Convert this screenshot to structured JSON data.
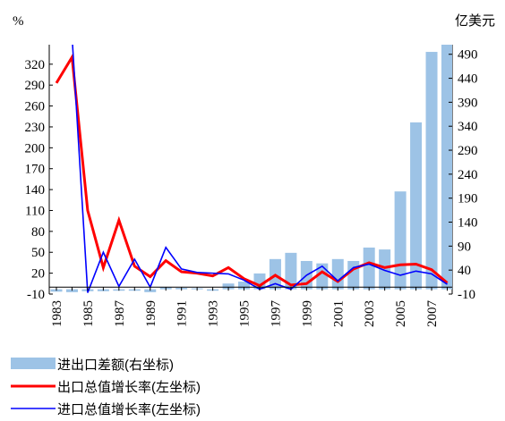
{
  "chart_data": {
    "type": "bar-line",
    "y_label": "%",
    "y2_label": "亿美元",
    "categories": [
      "1983",
      null,
      "1985",
      null,
      "1987",
      null,
      "1989",
      null,
      "1991",
      null,
      "1993",
      null,
      "1995",
      null,
      "1997",
      null,
      "1999",
      null,
      "2001",
      null,
      "2003",
      null,
      "2005",
      null,
      "2007",
      null
    ],
    "series": [
      {
        "name": "进出口差额(右坐标)",
        "type": "bar",
        "axis": "y2",
        "color": "#9dc3e6",
        "values": [
          -5,
          -6,
          -4,
          -4,
          -3,
          -3,
          -6,
          4,
          3,
          2,
          -3,
          12,
          16,
          33,
          63,
          76,
          59,
          54,
          63,
          59,
          87,
          83,
          204,
          348,
          495,
          510
        ]
      },
      {
        "name": "出口总值增长率(左坐标)",
        "type": "line",
        "axis": "y",
        "color": "#ff0000",
        "values": [
          293,
          330,
          110,
          28,
          96,
          30,
          15,
          38,
          22,
          20,
          16,
          28,
          12,
          2,
          17,
          3,
          5,
          22,
          8,
          26,
          35,
          28,
          32,
          33,
          25,
          6
        ]
      },
      {
        "name": "进口总值增长率(左坐标)",
        "type": "line",
        "axis": "y",
        "color": "#0000ff",
        "values": [
          null,
          360,
          -8,
          50,
          1,
          40,
          0,
          57,
          26,
          21,
          20,
          19,
          10,
          -3,
          5,
          -3,
          17,
          30,
          9,
          28,
          33,
          24,
          17,
          23,
          19,
          4
        ]
      }
    ],
    "ylim": [
      -10,
      348
    ],
    "yticks": [
      -10,
      20,
      50,
      80,
      110,
      140,
      170,
      200,
      230,
      260,
      290,
      320
    ],
    "y2lim": [
      -10,
      510
    ],
    "y2ticks": [
      -10,
      40,
      90,
      140,
      190,
      240,
      290,
      340,
      390,
      440,
      490
    ]
  }
}
